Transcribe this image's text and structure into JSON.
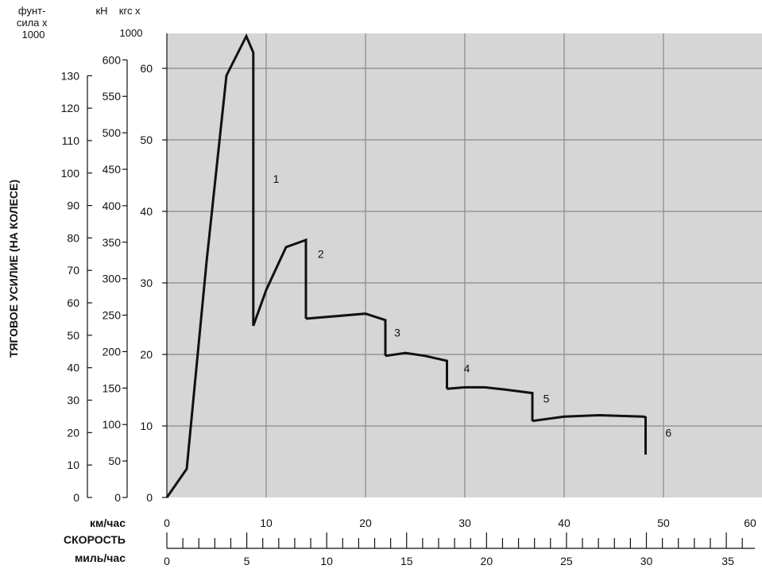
{
  "chart_data": {
    "type": "line",
    "ylabel": "ТЯГОВОЕ УСИЛИЕ (НА КОЛЕСЕ)",
    "unit_headers": {
      "lbf": "фунт-\nсила х\n1000",
      "kn": "кН",
      "kgf": "кгс х\n1000"
    },
    "x_axis": {
      "kmh_label": "км/час",
      "speed_label": "СКОРОСТЬ",
      "mph_label": "миль/час",
      "kmh_range": [
        0,
        60
      ],
      "kmh_ticks": [
        "0",
        "10",
        "20",
        "30",
        "40",
        "50",
        "60"
      ],
      "mph_ticks": [
        "0",
        "5",
        "10",
        "15",
        "20",
        "25",
        "30",
        "35"
      ]
    },
    "y_axes": {
      "kgf_range": [
        0,
        65
      ],
      "kgf_ticks": [
        "0",
        "10",
        "20",
        "30",
        "40",
        "50",
        "60"
      ],
      "kn_ticks": [
        "0",
        "50",
        "100",
        "150",
        "200",
        "250",
        "300",
        "350",
        "400",
        "450",
        "500",
        "550",
        "600"
      ],
      "lbf_ticks": [
        "0",
        "10",
        "20",
        "30",
        "40",
        "50",
        "60",
        "70",
        "80",
        "90",
        "100",
        "110",
        "120",
        "130"
      ]
    },
    "grid": true,
    "series": [
      {
        "label": "1",
        "x": [
          0,
          2,
          4,
          6,
          8,
          8.7,
          8.7
        ],
        "y": [
          0,
          4,
          33,
          59,
          64.5,
          62.2,
          24
        ]
      },
      {
        "label": "2",
        "x": [
          8.7,
          10,
          12,
          14,
          14
        ],
        "y": [
          24,
          29,
          35,
          36,
          25
        ]
      },
      {
        "label": "3",
        "x": [
          14,
          20,
          22,
          22
        ],
        "y": [
          25,
          25.7,
          24.8,
          19.8
        ]
      },
      {
        "label": "4",
        "x": [
          22,
          24,
          26,
          28.2,
          28.2
        ],
        "y": [
          19.8,
          20.2,
          19.8,
          19.1,
          15.2
        ]
      },
      {
        "label": "5",
        "x": [
          28.2,
          30,
          32,
          34,
          36.8,
          36.8
        ],
        "y": [
          15.2,
          15.4,
          15.4,
          15.1,
          14.6,
          10.7
        ]
      },
      {
        "label": "6",
        "x": [
          36.8,
          40,
          43.5,
          48,
          48.2,
          48.2
        ],
        "y": [
          10.7,
          11.3,
          11.5,
          11.3,
          11.2,
          6
        ]
      }
    ],
    "curve_labels": [
      {
        "text": "1",
        "x": 11,
        "y": 44
      },
      {
        "text": "2",
        "x": 15.5,
        "y": 33.5
      },
      {
        "text": "3",
        "x": 23.2,
        "y": 22.5
      },
      {
        "text": "4",
        "x": 30.2,
        "y": 17.5
      },
      {
        "text": "5",
        "x": 38.2,
        "y": 13.3
      },
      {
        "text": "6",
        "x": 50.5,
        "y": 8.5
      }
    ]
  }
}
